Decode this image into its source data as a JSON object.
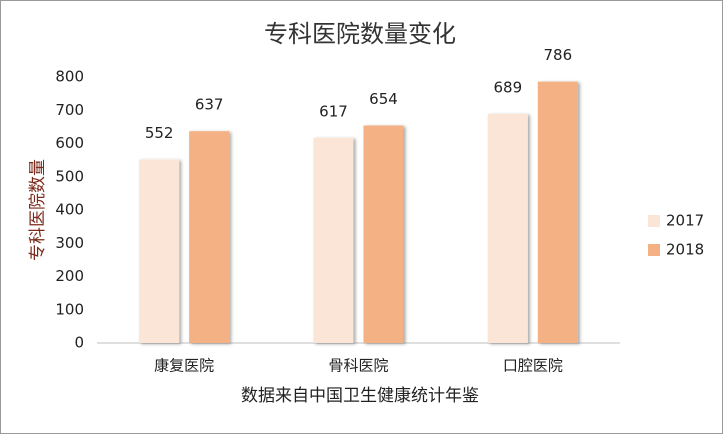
{
  "chart_data": {
    "type": "bar",
    "title": "专科医院数量变化",
    "y_label": "专科医院数量",
    "x_label": "数据来自中国卫生健康统计年鉴",
    "categories": [
      "康复医院",
      "骨科医院",
      "口腔医院"
    ],
    "series": [
      {
        "name": "2017",
        "color": "#fbe5d6",
        "values": [
          552,
          617,
          689
        ]
      },
      {
        "name": "2018",
        "color": "#f4b183",
        "values": [
          637,
          654,
          786
        ]
      }
    ],
    "ylim": [
      0,
      800
    ],
    "yticks": [
      0,
      100,
      200,
      300,
      400,
      500,
      600,
      700,
      800
    ],
    "grid": false,
    "legend": "right"
  }
}
